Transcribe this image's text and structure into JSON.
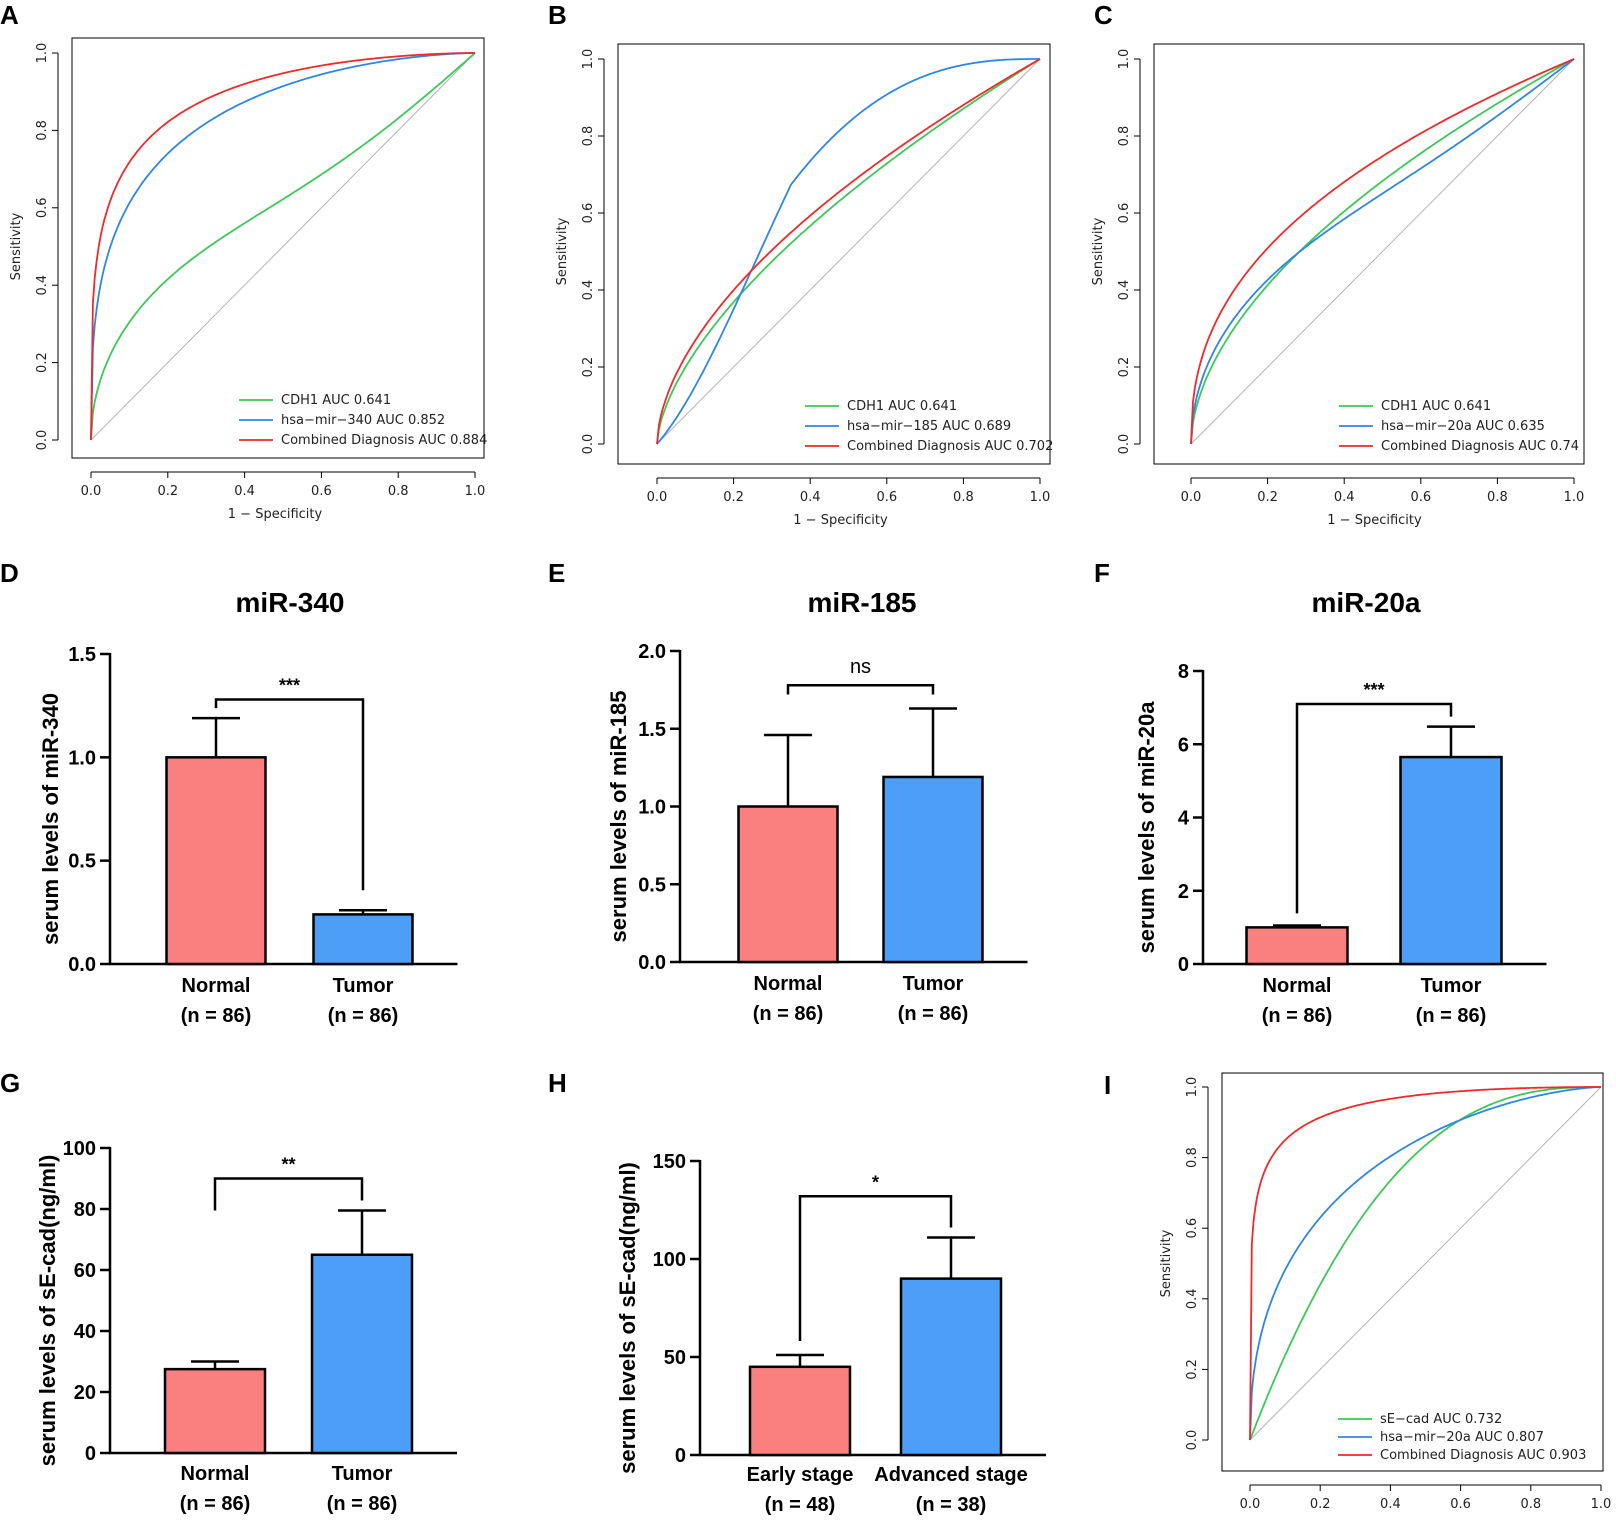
{
  "chart_data": [
    {
      "type": "line",
      "subtype": "roc",
      "panel": "A",
      "xlabel": "1 − Specificity",
      "ylabel": "Sensitivity",
      "xlim": [
        0,
        1
      ],
      "ylim": [
        0,
        1
      ],
      "ticks": [
        "0.0",
        "0.2",
        "0.4",
        "0.6",
        "0.8",
        "1.0"
      ],
      "legend_position": "bottom-right",
      "series": [
        {
          "name": "CDH1 AUC 0.641",
          "auc": 0.641,
          "color": "#3cc85a"
        },
        {
          "name": "hsa−mir−340 AUC 0.852",
          "auc": 0.852,
          "color": "#2e86e6"
        },
        {
          "name": "Combined Diagnosis AUC 0.884",
          "auc": 0.884,
          "color": "#ee2a2a"
        }
      ]
    },
    {
      "type": "line",
      "subtype": "roc",
      "panel": "B",
      "xlabel": "1 − Specificity",
      "ylabel": "Sensitivity",
      "xlim": [
        0,
        1
      ],
      "ylim": [
        0,
        1
      ],
      "ticks": [
        "0.0",
        "0.2",
        "0.4",
        "0.6",
        "0.8",
        "1.0"
      ],
      "legend_position": "bottom-right",
      "series": [
        {
          "name": "CDH1 AUC 0.641",
          "auc": 0.641,
          "color": "#3cc85a"
        },
        {
          "name": "hsa−mir−185 AUC 0.689",
          "auc": 0.689,
          "color": "#2e86e6"
        },
        {
          "name": "Combined Diagnosis AUC 0.702",
          "auc": 0.702,
          "color": "#ee2a2a"
        }
      ]
    },
    {
      "type": "line",
      "subtype": "roc",
      "panel": "C",
      "xlabel": "1 − Specificity",
      "ylabel": "Sensitivity",
      "xlim": [
        0,
        1
      ],
      "ylim": [
        0,
        1
      ],
      "ticks": [
        "0.0",
        "0.2",
        "0.4",
        "0.6",
        "0.8",
        "1.0"
      ],
      "legend_position": "bottom-right",
      "series": [
        {
          "name": "CDH1 AUC 0.641",
          "auc": 0.641,
          "color": "#3cc85a"
        },
        {
          "name": "hsa−mir−20a AUC 0.635",
          "auc": 0.635,
          "color": "#2e86e6"
        },
        {
          "name": "Combined Diagnosis AUC 0.74",
          "auc": 0.74,
          "color": "#ee2a2a"
        }
      ]
    },
    {
      "type": "bar",
      "panel": "D",
      "title": "miR-340",
      "ylabel": "serum levels of miR-340",
      "ylim": [
        0,
        1.5
      ],
      "yticks": [
        "0.0",
        "0.5",
        "1.0",
        "1.5"
      ],
      "categories": [
        "Normal",
        "Tumor"
      ],
      "category_counts": [
        "(n = 86)",
        "(n = 86)"
      ],
      "values": [
        1.0,
        0.24
      ],
      "errors": [
        0.19,
        0.02
      ],
      "significance": "***"
    },
    {
      "type": "bar",
      "panel": "E",
      "title": "miR-185",
      "ylabel": "serum levels of miR-185",
      "ylim": [
        0,
        2.0
      ],
      "yticks": [
        "0.0",
        "0.5",
        "1.0",
        "1.5",
        "2.0"
      ],
      "categories": [
        "Normal",
        "Tumor"
      ],
      "category_counts": [
        "(n = 86)",
        "(n = 86)"
      ],
      "values": [
        1.0,
        1.19
      ],
      "errors": [
        0.46,
        0.44
      ],
      "significance": "ns"
    },
    {
      "type": "bar",
      "panel": "F",
      "title": "miR-20a",
      "ylabel": "serum levels of miR-20a",
      "ylim": [
        0,
        8
      ],
      "yticks": [
        "0",
        "2",
        "4",
        "6",
        "8"
      ],
      "categories": [
        "Normal",
        "Tumor"
      ],
      "category_counts": [
        "(n = 86)",
        "(n = 86)"
      ],
      "values": [
        1.0,
        5.65
      ],
      "errors": [
        0.05,
        0.83
      ],
      "significance": "***"
    },
    {
      "type": "bar",
      "panel": "G",
      "ylabel": "serum levels of sE-cad(ng/ml)",
      "ylim": [
        0,
        100
      ],
      "yticks": [
        "0",
        "20",
        "40",
        "60",
        "80",
        "100"
      ],
      "categories": [
        "Normal",
        "Tumor"
      ],
      "category_counts": [
        "(n = 86)",
        "(n = 86)"
      ],
      "values": [
        27.5,
        65
      ],
      "errors": [
        2.5,
        14.5
      ],
      "significance": "**"
    },
    {
      "type": "bar",
      "panel": "H",
      "ylabel": "serum levels of sE-cad(ng/ml)",
      "ylim": [
        0,
        150
      ],
      "yticks": [
        "0",
        "50",
        "100",
        "150"
      ],
      "categories": [
        "Early stage",
        "Advanced stage"
      ],
      "category_counts": [
        "(n = 48)",
        "(n = 38)"
      ],
      "values": [
        45,
        90
      ],
      "errors": [
        6,
        21
      ],
      "significance": "*"
    },
    {
      "type": "line",
      "subtype": "roc",
      "panel": "I",
      "xlabel": "1 − Specificity",
      "ylabel": "Sensitivity",
      "xlim": [
        0,
        1
      ],
      "ylim": [
        0,
        1
      ],
      "ticks": [
        "0.0",
        "0.2",
        "0.4",
        "0.6",
        "0.8",
        "1.0"
      ],
      "legend_position": "bottom-right",
      "series": [
        {
          "name": "sE−cad AUC 0.732",
          "auc": 0.732,
          "color": "#3cc85a"
        },
        {
          "name": "hsa−mir−20a AUC 0.807",
          "auc": 0.807,
          "color": "#2e86e6"
        },
        {
          "name": "Combined Diagnosis AUC 0.903",
          "auc": 0.903,
          "color": "#ee2a2a"
        }
      ]
    }
  ],
  "colors": {
    "bar_fill": [
      "#fa7f7f",
      "#4d9ef7"
    ],
    "diagonal": "#b4b4b4"
  }
}
